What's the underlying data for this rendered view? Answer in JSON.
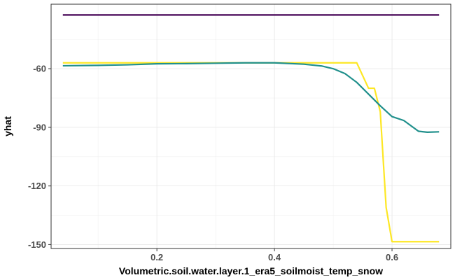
{
  "chart_data": {
    "type": "line",
    "xlabel": "Volumetric.soil.water.layer.1_era5_soilmoist_temp_snow",
    "ylabel": "yhat",
    "xlim": [
      0.02,
      0.7
    ],
    "ylim": [
      -152,
      -27
    ],
    "x_ticks": [
      0.2,
      0.4,
      0.6
    ],
    "y_ticks": [
      -60,
      -90,
      -120,
      -150
    ],
    "x_tick_labels": [
      "0.2",
      "0.4",
      "0.6"
    ],
    "y_tick_labels": [
      "-60",
      "-90",
      "-120",
      "-150"
    ],
    "grid": true,
    "legend": "none",
    "series": [
      {
        "color": "#440154",
        "points": [
          [
            0.04,
            -32.5
          ],
          [
            0.68,
            -32.5
          ]
        ]
      },
      {
        "color": "#fde725",
        "points": [
          [
            0.04,
            -57
          ],
          [
            0.54,
            -57
          ],
          [
            0.56,
            -70
          ],
          [
            0.57,
            -70
          ],
          [
            0.58,
            -82
          ],
          [
            0.59,
            -131
          ],
          [
            0.6,
            -148.5
          ],
          [
            0.68,
            -148.5
          ]
        ]
      },
      {
        "color": "#21908c",
        "points": [
          [
            0.04,
            -58.5
          ],
          [
            0.1,
            -58.3
          ],
          [
            0.15,
            -58
          ],
          [
            0.2,
            -57.5
          ],
          [
            0.25,
            -57.4
          ],
          [
            0.3,
            -57.2
          ],
          [
            0.35,
            -57
          ],
          [
            0.4,
            -57
          ],
          [
            0.45,
            -57.7
          ],
          [
            0.48,
            -58.6
          ],
          [
            0.5,
            -60
          ],
          [
            0.52,
            -62.5
          ],
          [
            0.54,
            -67
          ],
          [
            0.56,
            -73
          ],
          [
            0.58,
            -79
          ],
          [
            0.6,
            -84.5
          ],
          [
            0.62,
            -86.5
          ],
          [
            0.645,
            -92
          ],
          [
            0.66,
            -92.5
          ],
          [
            0.68,
            -92.3
          ]
        ]
      }
    ]
  }
}
